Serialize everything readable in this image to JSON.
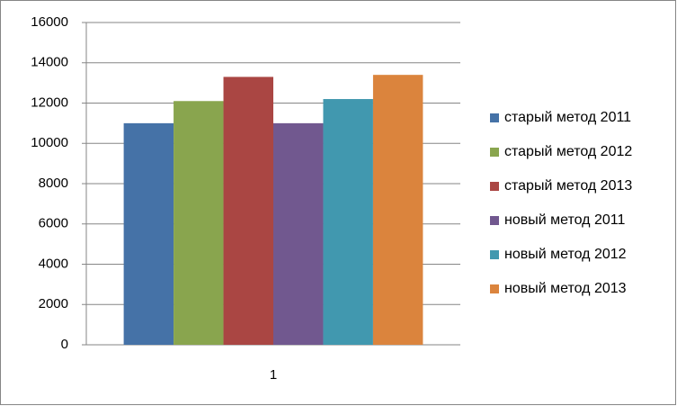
{
  "chart_data": {
    "type": "bar",
    "categories": [
      "1"
    ],
    "series": [
      {
        "name": "старый метод 2011",
        "color": "#4572a7",
        "values": [
          11000
        ]
      },
      {
        "name": "старый метод 2012",
        "color": "#89a54e",
        "values": [
          12100
        ]
      },
      {
        "name": "старый метод 2013",
        "color": "#aa4643",
        "values": [
          13300
        ]
      },
      {
        "name": "новый метод 2011",
        "color": "#71588f",
        "values": [
          11000
        ]
      },
      {
        "name": "новый метод 2012",
        "color": "#4198af",
        "values": [
          12200
        ]
      },
      {
        "name": "новый метод 2013",
        "color": "#db843d",
        "values": [
          13400
        ]
      }
    ],
    "ylim": [
      0,
      16000
    ],
    "yticks": [
      0,
      2000,
      4000,
      6000,
      8000,
      10000,
      12000,
      14000,
      16000
    ],
    "grid": true,
    "legend": "right"
  }
}
